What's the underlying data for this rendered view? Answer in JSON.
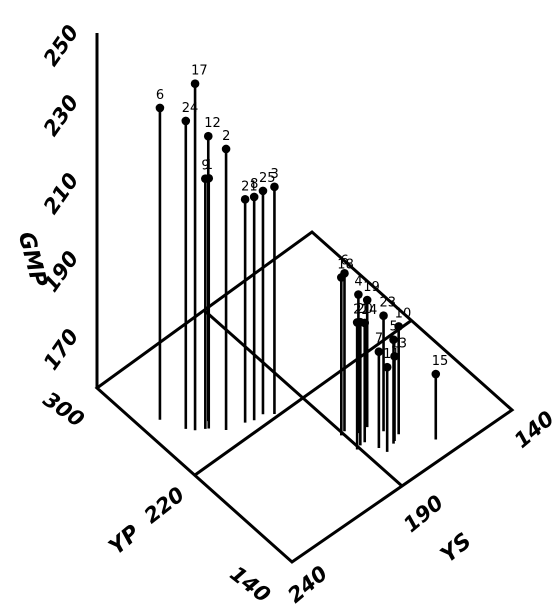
{
  "chart_data": {
    "type": "scatter",
    "subtype": "3d-stem",
    "title": "",
    "axes": {
      "z": {
        "label": "GMP",
        "ticks": [
          "170",
          "190",
          "210",
          "230",
          "250"
        ]
      },
      "x": {
        "label": "YS",
        "ticks": [
          "140",
          "190",
          "240"
        ]
      },
      "y": {
        "label": "YP",
        "ticks": [
          "140",
          "220",
          "300"
        ]
      }
    },
    "ranges": {
      "ys": [
        140,
        240
      ],
      "yp": [
        140,
        300
      ],
      "gmp": [
        160,
        255
      ]
    },
    "grid": true,
    "points": [
      {
        "label": "6",
        "ys": 233,
        "yp": 261,
        "gmp": 241
      },
      {
        "label": "17",
        "ys": 227,
        "yp": 243,
        "gmp": 250
      },
      {
        "label": "24",
        "ys": 229,
        "yp": 247,
        "gmp": 240
      },
      {
        "label": "12",
        "ys": 221,
        "yp": 243,
        "gmp": 234
      },
      {
        "label": "2",
        "ys": 219,
        "yp": 232,
        "gmp": 233
      },
      {
        "label": "9",
        "ys": 224,
        "yp": 240,
        "gmp": 225
      },
      {
        "label": "1",
        "ys": 223,
        "yp": 239,
        "gmp": 225
      },
      {
        "label": "21",
        "ys": 212,
        "yp": 229,
        "gmp": 218
      },
      {
        "label": "8",
        "ys": 209,
        "yp": 227,
        "gmp": 218
      },
      {
        "label": "25",
        "ys": 205,
        "yp": 227,
        "gmp": 218
      },
      {
        "label": "3",
        "ys": 202,
        "yp": 223,
        "gmp": 219
      },
      {
        "label": "18",
        "ys": 191,
        "yp": 188,
        "gmp": 201
      },
      {
        "label": "6",
        "ys": 189,
        "yp": 189,
        "gmp": 201
      },
      {
        "label": "4",
        "ys": 186,
        "yp": 183,
        "gmp": 196
      },
      {
        "label": "19",
        "ys": 182,
        "yp": 183,
        "gmp": 193
      },
      {
        "label": "22",
        "ys": 191,
        "yp": 175,
        "gmp": 193
      },
      {
        "label": "20",
        "ys": 189,
        "yp": 176,
        "gmp": 192
      },
      {
        "label": "14",
        "ys": 187,
        "yp": 176,
        "gmp": 191
      },
      {
        "label": "23",
        "ys": 179,
        "yp": 175,
        "gmp": 190
      },
      {
        "label": "10",
        "ys": 176,
        "yp": 168,
        "gmp": 188
      },
      {
        "label": "15",
        "ys": 168,
        "yp": 152,
        "gmp": 177
      },
      {
        "label": "5",
        "ys": 180,
        "yp": 165,
        "gmp": 187
      },
      {
        "label": "7",
        "ys": 185,
        "yp": 168,
        "gmp": 185
      },
      {
        "label": "11",
        "ys": 184,
        "yp": 163,
        "gmp": 182
      },
      {
        "label": "13",
        "ys": 179,
        "yp": 166,
        "gmp": 182
      }
    ]
  }
}
